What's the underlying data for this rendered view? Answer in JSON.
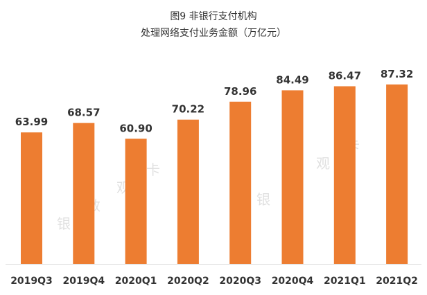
{
  "chart_data": {
    "type": "bar",
    "title": "图9 非银行支付机构",
    "subtitle": "处理网络支付业务金额（万亿元）",
    "categories": [
      "2019Q3",
      "2019Q4",
      "2020Q1",
      "2020Q2",
      "2020Q3",
      "2020Q4",
      "2021Q1",
      "2021Q2"
    ],
    "values": [
      63.99,
      68.57,
      60.9,
      70.22,
      78.96,
      84.49,
      86.47,
      87.32
    ],
    "value_labels": [
      "63.99",
      "68.57",
      "60.90",
      "70.22",
      "78.96",
      "84.49",
      "86.47",
      "87.32"
    ],
    "ylim": [
      0,
      88
    ],
    "grid": false,
    "legend": "none",
    "bar_color": "#ED7D31",
    "axis_color": "#d9d9d9"
  },
  "watermark": [
    "银",
    "数",
    "观",
    "卡"
  ]
}
